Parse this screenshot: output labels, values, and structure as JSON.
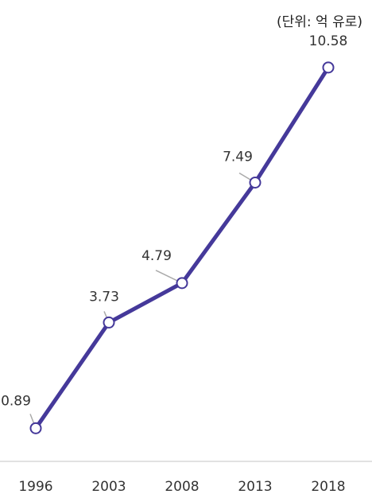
{
  "chart_data": {
    "type": "line",
    "title": "",
    "unit_note": "(단위: 억 유로)",
    "xlabel": "",
    "ylabel": "",
    "categories": [
      "1996",
      "2003",
      "2008",
      "2013",
      "2018"
    ],
    "series": [
      {
        "values": [
          0.89,
          3.73,
          4.79,
          7.49,
          10.58
        ],
        "data_labels": [
          "0.89",
          "3.73",
          "4.79",
          "7.49",
          "10.58"
        ]
      }
    ],
    "ylim": [
      0,
      11.5
    ],
    "grid": false,
    "legend": "none",
    "line_color": "#45399a",
    "marker": "open-circle"
  }
}
